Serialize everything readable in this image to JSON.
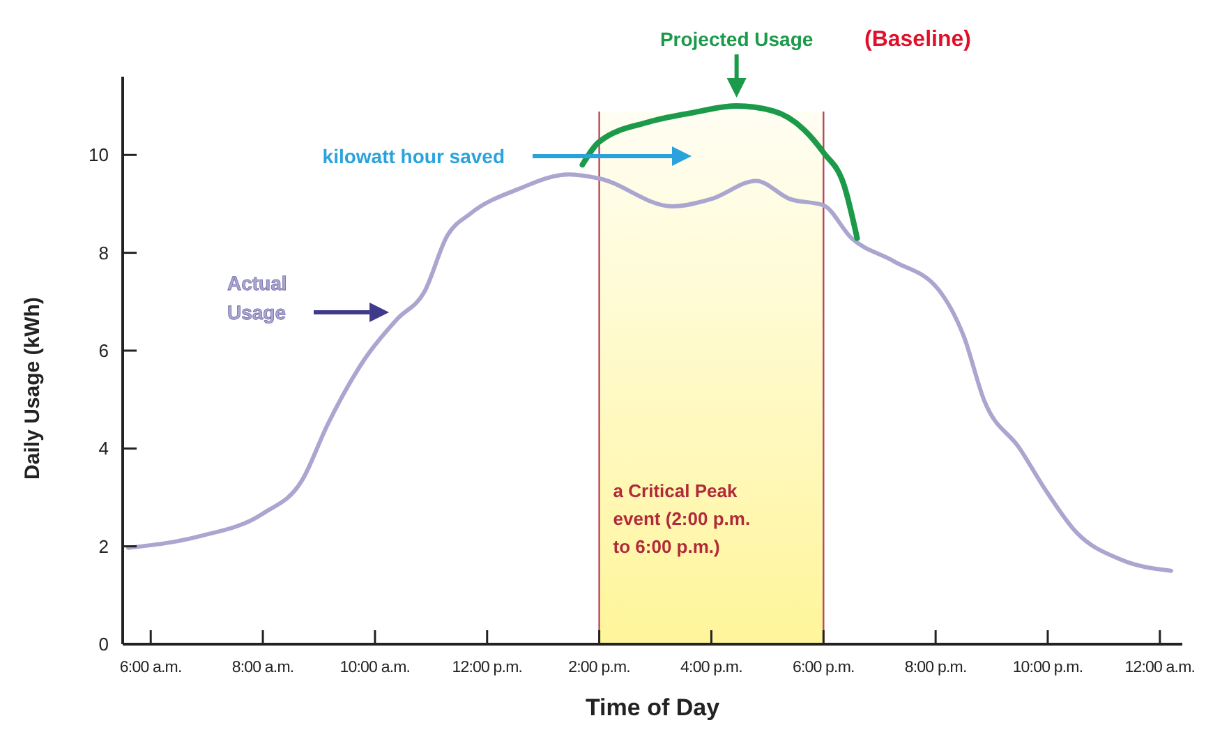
{
  "chart_data": {
    "type": "line",
    "xlabel": "Time of Day",
    "ylabel": "Daily Usage (kWh)",
    "xlim": [
      5.5,
      24.4
    ],
    "ylim": [
      0,
      11.6
    ],
    "xticks": [
      {
        "value": 6,
        "label": "6:00 a.m."
      },
      {
        "value": 8,
        "label": "8:00 a.m."
      },
      {
        "value": 10,
        "label": "10:00 a.m."
      },
      {
        "value": 12,
        "label": "12:00 p.m."
      },
      {
        "value": 14,
        "label": "2:00 p.m."
      },
      {
        "value": 16,
        "label": "4:00 p.m."
      },
      {
        "value": 18,
        "label": "6:00 p.m."
      },
      {
        "value": 20,
        "label": "8:00 p.m."
      },
      {
        "value": 22,
        "label": "10:00 p.m."
      },
      {
        "value": 24,
        "label": "12:00 a.m."
      }
    ],
    "yticks": [
      0,
      2,
      4,
      6,
      8,
      10
    ],
    "ref_lines": [
      {
        "axis": "x",
        "value": 14,
        "color": "#b5485a"
      },
      {
        "axis": "x",
        "value": 18,
        "color": "#b5485a"
      }
    ],
    "series": [
      {
        "name": "Actual Usage",
        "color": "#aaa6cf",
        "x": [
          5.6,
          6.85,
          8.0,
          8.7,
          9.16,
          9.8,
          10.4,
          10.88,
          11.29,
          11.7,
          12.55,
          13.45,
          14.0,
          15.3,
          16.0,
          16.8,
          17.4,
          18.0,
          18.5,
          19.25,
          20.05,
          20.5,
          20.87,
          21.5,
          21.95,
          22.5,
          23.3,
          24.2
        ],
        "values": [
          1.97,
          2.2,
          2.67,
          3.35,
          4.5,
          5.8,
          6.65,
          7.2,
          8.35,
          8.8,
          9.3,
          9.6,
          9.52,
          8.95,
          9.1,
          9.47,
          9.1,
          8.97,
          8.3,
          7.83,
          7.25,
          6.3,
          4.97,
          4.0,
          3.17,
          2.3,
          1.73,
          1.5
        ]
      },
      {
        "name": "Projected Usage",
        "color": "#1b9a4a",
        "x": [
          13.7,
          14.0,
          14.87,
          15.6,
          16.45,
          17.1,
          17.65,
          18.0,
          18.37,
          18.6
        ],
        "values": [
          9.8,
          10.27,
          10.67,
          10.85,
          11.0,
          10.9,
          10.52,
          10.05,
          9.37,
          8.3
        ]
      }
    ],
    "bands": [
      {
        "axis": "x",
        "from": 14,
        "to": 18,
        "label": "a Critical Peak event  (2:00 p.m. to 6:00 p.m.)",
        "color": "#fff59a"
      }
    ],
    "annotations": [
      "kilowatt hour saved",
      "(Baseline)"
    ]
  }
}
